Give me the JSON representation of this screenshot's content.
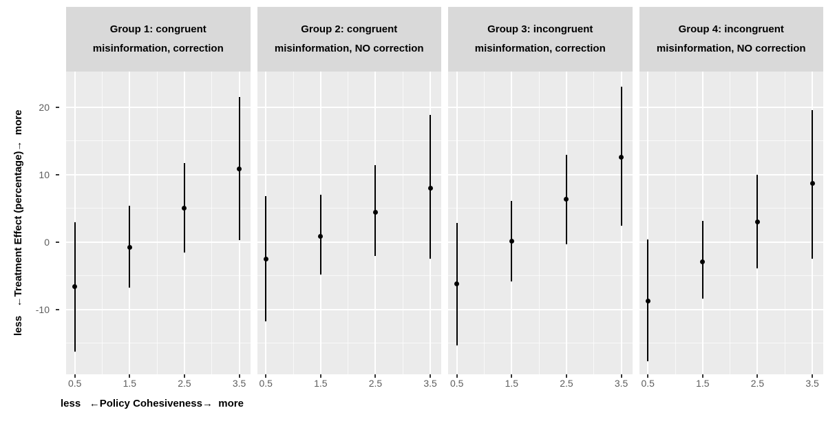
{
  "chart_data": {
    "type": "scatter",
    "subtype": "point-range-faceted",
    "xlabel": "less   ←Policy Cohesiveness→  more",
    "ylabel": "less   ←Treatment Effect (percentage)→  more",
    "x_ticks": [
      "0.5",
      "1.5",
      "2.5",
      "3.5"
    ],
    "y_ticks": [
      20,
      10,
      0,
      -10
    ],
    "xlim": [
      0.34,
      3.7
    ],
    "ylim": [
      -19.6,
      25.3
    ],
    "grid": {
      "on": true,
      "major_x": [
        0.5,
        1.5,
        2.5,
        3.5
      ],
      "minor_x": [
        1.0,
        2.0,
        3.0
      ],
      "major_y": [
        20,
        10,
        0,
        -10
      ],
      "minor_y": [
        15,
        5,
        -5,
        -15
      ]
    },
    "legend": "none",
    "facets": [
      {
        "title": "Group 1: congruent misinformation, correction",
        "points": [
          {
            "x": 0.5,
            "est": -6.6,
            "lo": -16.2,
            "hi": 3.0
          },
          {
            "x": 1.5,
            "est": -0.8,
            "lo": -6.7,
            "hi": 5.4
          },
          {
            "x": 2.5,
            "est": 5.0,
            "lo": -1.5,
            "hi": 11.7
          },
          {
            "x": 3.5,
            "est": 10.9,
            "lo": 0.3,
            "hi": 21.5
          }
        ]
      },
      {
        "title": "Group 2: congruent misinformation, NO correction",
        "points": [
          {
            "x": 0.5,
            "est": -2.5,
            "lo": -11.7,
            "hi": 6.8
          },
          {
            "x": 1.5,
            "est": 0.9,
            "lo": -4.8,
            "hi": 7.0
          },
          {
            "x": 2.5,
            "est": 4.4,
            "lo": -2.1,
            "hi": 11.4
          },
          {
            "x": 3.5,
            "est": 8.0,
            "lo": -2.5,
            "hi": 18.9
          }
        ]
      },
      {
        "title": "Group 3: incongruent misinformation, correction",
        "points": [
          {
            "x": 0.5,
            "est": -6.2,
            "lo": -15.3,
            "hi": 2.9
          },
          {
            "x": 1.5,
            "est": 0.1,
            "lo": -5.8,
            "hi": 6.1
          },
          {
            "x": 2.5,
            "est": 6.4,
            "lo": -0.3,
            "hi": 13.0
          },
          {
            "x": 3.5,
            "est": 12.6,
            "lo": 2.4,
            "hi": 23.1
          }
        ]
      },
      {
        "title": "Group 4: incongruent misinformation, NO correction",
        "points": [
          {
            "x": 0.5,
            "est": -8.7,
            "lo": -17.7,
            "hi": 0.4
          },
          {
            "x": 1.5,
            "est": -2.9,
            "lo": -8.4,
            "hi": 3.2
          },
          {
            "x": 2.5,
            "est": 3.0,
            "lo": -3.9,
            "hi": 10.0
          },
          {
            "x": 3.5,
            "est": 8.7,
            "lo": -2.5,
            "hi": 19.6
          }
        ]
      }
    ],
    "colors": {
      "panel_background": "#ebebeb",
      "header_background": "#d9d9d9",
      "gridline": "#ffffff",
      "point": "#000000",
      "tick_label": "#5c5c5c",
      "axis_title": "#000000",
      "figure_background": "#ffffff"
    }
  }
}
